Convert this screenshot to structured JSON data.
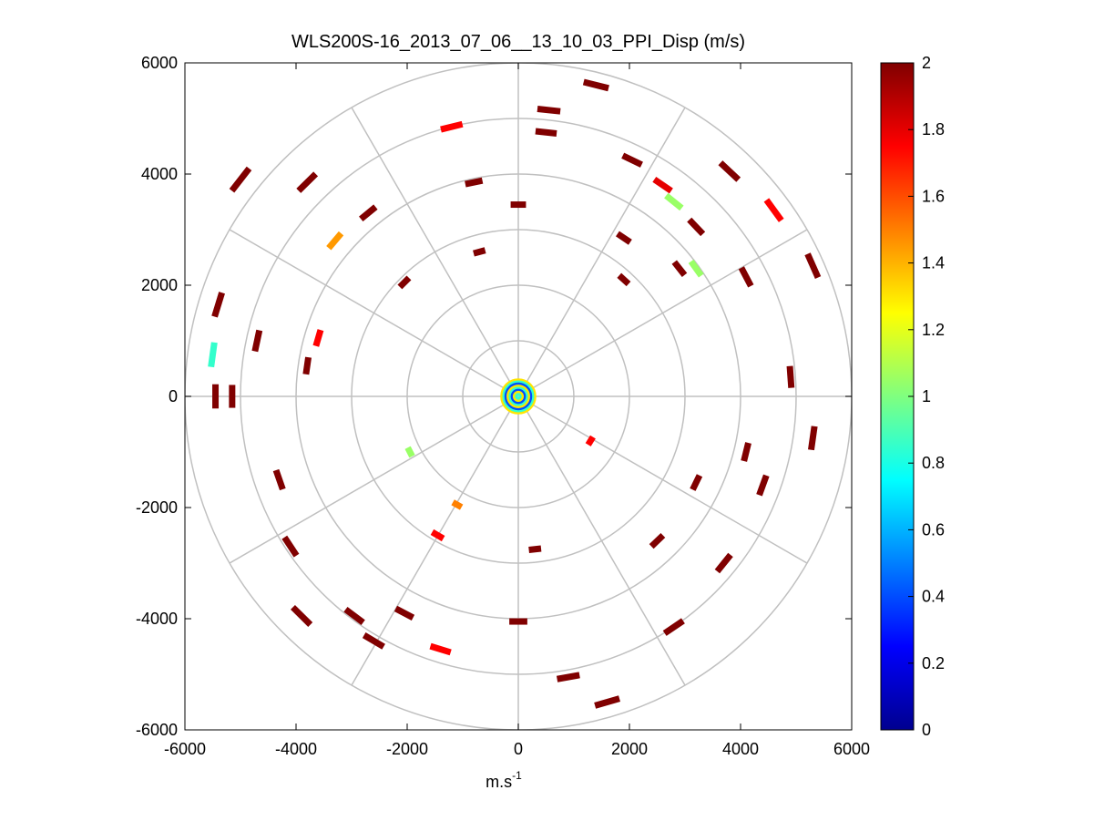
{
  "chart_data": {
    "type": "scatter",
    "title": "WLS200S-16_2013_07_06__13_10_03_PPI_Disp (m/s)",
    "xlabel": "m.s",
    "xlabel_sup": "-1",
    "ylabel": "",
    "xlim": [
      -6000,
      6000
    ],
    "ylim": [
      -6000,
      6000
    ],
    "xticks": [
      "-6000",
      "-4000",
      "-2000",
      "0",
      "2000",
      "4000",
      "6000"
    ],
    "yticks": [
      "6000",
      "4000",
      "2000",
      "0",
      "-2000",
      "-4000",
      "-6000"
    ],
    "polar_grid": {
      "ring_radii": [
        1000,
        2000,
        3000,
        4000,
        5000,
        6000
      ],
      "spoke_angles_deg": [
        0,
        30,
        60,
        90,
        120,
        150,
        180,
        210,
        240,
        270,
        300,
        330
      ],
      "color": "#c0c0c0"
    },
    "colorbar": {
      "label": "",
      "range": [
        0,
        2
      ],
      "ticks": [
        "2",
        "1.8",
        "1.6",
        "1.4",
        "1.2",
        "1",
        "0.8",
        "0.6",
        "0.4",
        "0.2",
        "0"
      ],
      "colormap": "jet"
    },
    "points": [
      {
        "x": 1400,
        "y": 5600,
        "v": 2.0
      },
      {
        "x": 550,
        "y": 5150,
        "v": 2.0
      },
      {
        "x": -1200,
        "y": 4850,
        "v": 1.75
      },
      {
        "x": 500,
        "y": 4750,
        "v": 2.0
      },
      {
        "x": 2050,
        "y": 4250,
        "v": 2.0
      },
      {
        "x": 2600,
        "y": 3800,
        "v": 1.8
      },
      {
        "x": 2800,
        "y": 3500,
        "v": 1.05
      },
      {
        "x": 3800,
        "y": 4050,
        "v": 2.0
      },
      {
        "x": 4600,
        "y": 3350,
        "v": 1.75
      },
      {
        "x": 3200,
        "y": 3050,
        "v": 2.0
      },
      {
        "x": 3200,
        "y": 2300,
        "v": 1.05
      },
      {
        "x": 2900,
        "y": 2300,
        "v": 2.0
      },
      {
        "x": 1900,
        "y": 2850,
        "v": 2.0
      },
      {
        "x": 1900,
        "y": 2100,
        "v": 2.0
      },
      {
        "x": 4100,
        "y": 2150,
        "v": 2.0
      },
      {
        "x": 5300,
        "y": 2350,
        "v": 2.0
      },
      {
        "x": -800,
        "y": 3850,
        "v": 2.0
      },
      {
        "x": -3800,
        "y": 3850,
        "v": 2.0
      },
      {
        "x": -3300,
        "y": 2800,
        "v": 1.45
      },
      {
        "x": -2700,
        "y": 3300,
        "v": 2.0
      },
      {
        "x": -5500,
        "y": 750,
        "v": 0.85
      },
      {
        "x": -5450,
        "y": 0,
        "v": 2.0
      },
      {
        "x": -5150,
        "y": 0,
        "v": 2.0
      },
      {
        "x": -3800,
        "y": 550,
        "v": 2.0
      },
      {
        "x": -3600,
        "y": 1050,
        "v": 1.75
      },
      {
        "x": -1950,
        "y": -1000,
        "v": 1.05
      },
      {
        "x": -1100,
        "y": -1950,
        "v": 1.5
      },
      {
        "x": -1450,
        "y": -2500,
        "v": 1.75
      },
      {
        "x": -1400,
        "y": -4550,
        "v": 1.75
      },
      {
        "x": 1300,
        "y": -800,
        "v": 1.75
      },
      {
        "x": -2050,
        "y": 2050,
        "v": 2.0
      },
      {
        "x": -4300,
        "y": -1500,
        "v": 2.0
      },
      {
        "x": -2950,
        "y": -3950,
        "v": 2.0
      },
      {
        "x": -3900,
        "y": -3950,
        "v": 2.0
      },
      {
        "x": 0,
        "y": -4050,
        "v": 2.0
      },
      {
        "x": 1600,
        "y": -5500,
        "v": 2.0
      },
      {
        "x": 900,
        "y": -5050,
        "v": 2.0
      },
      {
        "x": 2500,
        "y": -2600,
        "v": 2.0
      },
      {
        "x": 3200,
        "y": -1550,
        "v": 2.0
      },
      {
        "x": 3700,
        "y": -3000,
        "v": 2.0
      },
      {
        "x": 4400,
        "y": -1600,
        "v": 2.0
      },
      {
        "x": 5300,
        "y": -750,
        "v": 2.0
      },
      {
        "x": 2800,
        "y": -4150,
        "v": 2.0
      },
      {
        "x": -5400,
        "y": 1650,
        "v": 2.0
      },
      {
        "x": -4700,
        "y": 1000,
        "v": 2.0
      },
      {
        "x": -2050,
        "y": -3900,
        "v": 2.0
      },
      {
        "x": -2600,
        "y": -4400,
        "v": 2.0
      },
      {
        "x": -4100,
        "y": -2700,
        "v": 2.0
      },
      {
        "x": 300,
        "y": -2750,
        "v": 2.0
      },
      {
        "x": -700,
        "y": 2600,
        "v": 2.0
      },
      {
        "x": 0,
        "y": 3450,
        "v": 2.0
      },
      {
        "x": -5000,
        "y": 3900,
        "v": 2.0
      },
      {
        "x": 4900,
        "y": 350,
        "v": 2.0
      },
      {
        "x": 4100,
        "y": -1000,
        "v": 2.0
      }
    ],
    "center_disk": {
      "r": 300,
      "v_range": [
        0.4,
        1.3
      ]
    }
  }
}
